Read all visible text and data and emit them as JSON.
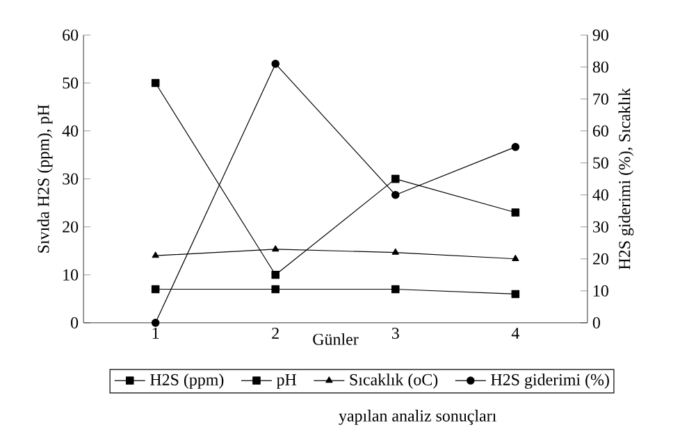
{
  "chart_data": {
    "type": "line",
    "categories": [
      "1",
      "2",
      "3",
      "4"
    ],
    "xlabel": "Günler",
    "ylabel": "Sıvıda H2S (ppm), pH",
    "y2label": "H2S giderimi (%), Sıcaklık",
    "ylim": [
      0,
      60
    ],
    "yticks": [
      0,
      10,
      20,
      30,
      40,
      50,
      60
    ],
    "y2lim": [
      0,
      90
    ],
    "y2ticks": [
      0,
      10,
      20,
      30,
      40,
      50,
      60,
      70,
      80,
      90
    ],
    "series": [
      {
        "name": "H2S (ppm)",
        "color": "#000000",
        "marker": "square",
        "values": [
          50,
          10,
          30,
          23
        ]
      },
      {
        "name": "pH",
        "color": "#000000",
        "marker": "square",
        "values": [
          7,
          7,
          7,
          6
        ]
      },
      {
        "name": "Sıcaklık (oC)",
        "color": "#000000",
        "marker": "triangle",
        "axis": "y2",
        "values": [
          21,
          23,
          22,
          20
        ]
      },
      {
        "name": "H2S giderimi (%)",
        "color": "#000000",
        "marker": "circle",
        "axis": "y2",
        "values": [
          0,
          81,
          40,
          55
        ]
      }
    ],
    "line_style": "solid",
    "grid": false,
    "legend": "bottom",
    "annotations": [
      "yapılan analiz sonuçları"
    ]
  }
}
